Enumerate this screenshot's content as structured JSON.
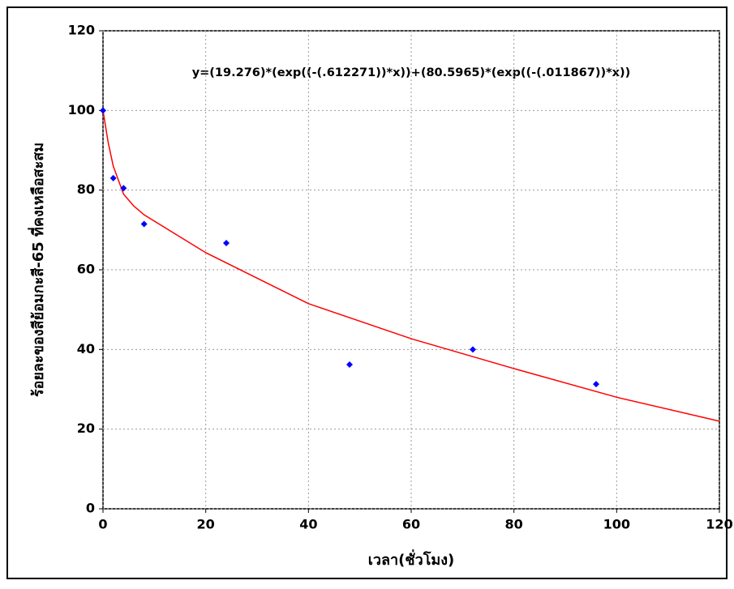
{
  "chart_data": {
    "type": "scatter",
    "annotation": "y=(19.276)*(exp((-(.612271))*x))+(80.5965)*(exp((-(.011867))*x))",
    "xlabel": "เวลา(ชั่วโมง)",
    "ylabel": "ร้อยละของสีย้อมกะสี-65 ที่คงเหลือสะสม",
    "xlim": [
      0,
      120
    ],
    "ylim": [
      0,
      120
    ],
    "xticks": [
      0,
      20,
      40,
      60,
      80,
      100,
      120
    ],
    "yticks": [
      0,
      20,
      40,
      60,
      80,
      100,
      120
    ],
    "grid": true,
    "series": [
      {
        "color": "#0000ff",
        "x": [
          0,
          2,
          4,
          8,
          24,
          48,
          72,
          96
        ],
        "values": [
          100,
          83,
          80.5,
          71.5,
          66.7,
          36.2,
          40,
          31.3
        ]
      },
      {
        "type": "line",
        "color": "#ff0000",
        "x": [
          0,
          1,
          2,
          4,
          6,
          8,
          20,
          40,
          60,
          80,
          100,
          120
        ],
        "values": [
          100,
          92,
          86,
          79,
          76,
          73.8,
          64.3,
          51.5,
          42.7,
          35.2,
          28,
          22
        ]
      }
    ]
  }
}
